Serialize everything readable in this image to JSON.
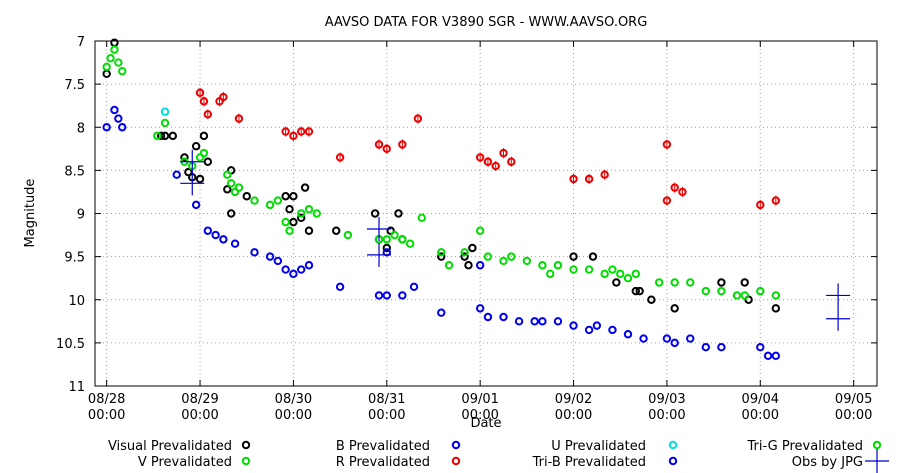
{
  "chart_data": {
    "type": "scatter",
    "title": "AAVSO DATA FOR V3890 SGR - WWW.AAVSO.ORG",
    "xlabel": "Date",
    "ylabel": "Magnitude",
    "y_inverted": true,
    "ylim": [
      7,
      11
    ],
    "y_ticks": [
      "7",
      "7.5",
      "8",
      "8.5",
      "9",
      "9.5",
      "10",
      "10.5",
      "11"
    ],
    "xlim": [
      "08/27 21:00",
      "09/05 06:00"
    ],
    "x_ticks": [
      {
        "date": "08/28",
        "time": "00:00"
      },
      {
        "date": "08/29",
        "time": "00:00"
      },
      {
        "date": "08/30",
        "time": "00:00"
      },
      {
        "date": "08/31",
        "time": "00:00"
      },
      {
        "date": "09/01",
        "time": "00:00"
      },
      {
        "date": "09/02",
        "time": "00:00"
      },
      {
        "date": "09/03",
        "time": "00:00"
      },
      {
        "date": "09/04",
        "time": "00:00"
      },
      {
        "date": "09/05",
        "time": "00:00"
      }
    ],
    "grid": true,
    "legend_position": "bottom",
    "series": [
      {
        "name": "Visual Prevalidated",
        "color": "#000000",
        "marker": "ring",
        "points": [
          [
            "08/28 00:00",
            7.38
          ],
          [
            "08/28 02:00",
            7.02
          ],
          [
            "08/28 14:00",
            8.1
          ],
          [
            "08/28 15:00",
            8.1
          ],
          [
            "08/28 17:00",
            8.1
          ],
          [
            "08/28 20:00",
            8.35
          ],
          [
            "08/28 21:00",
            8.52
          ],
          [
            "08/28 22:00",
            8.58
          ],
          [
            "08/28 23:00",
            8.22
          ],
          [
            "08/29 00:00",
            8.6
          ],
          [
            "08/29 01:00",
            8.1
          ],
          [
            "08/29 02:00",
            8.4
          ],
          [
            "08/29 07:00",
            8.72
          ],
          [
            "08/29 08:00",
            8.5
          ],
          [
            "08/29 08:00",
            9.0
          ],
          [
            "08/29 12:00",
            8.8
          ],
          [
            "08/29 22:00",
            8.8
          ],
          [
            "08/29 23:00",
            8.95
          ],
          [
            "08/30 00:00",
            9.1
          ],
          [
            "08/30 00:00",
            8.8
          ],
          [
            "08/30 02:00",
            9.05
          ],
          [
            "08/30 03:00",
            8.7
          ],
          [
            "08/30 04:00",
            9.2
          ],
          [
            "08/30 11:00",
            9.2
          ],
          [
            "08/30 21:00",
            9.0
          ],
          [
            "08/30 22:00",
            9.3
          ],
          [
            "08/31 00:00",
            9.4
          ],
          [
            "08/31 01:00",
            9.2
          ],
          [
            "08/31 03:00",
            9.0
          ],
          [
            "08/31 04:00",
            9.3
          ],
          [
            "08/31 14:00",
            9.5
          ],
          [
            "08/31 20:00",
            9.5
          ],
          [
            "08/31 21:00",
            9.6
          ],
          [
            "08/31 22:00",
            9.4
          ],
          [
            "09/02 00:00",
            9.5
          ],
          [
            "09/02 05:00",
            9.5
          ],
          [
            "09/02 11:00",
            9.8
          ],
          [
            "09/02 16:00",
            9.9
          ],
          [
            "09/02 17:00",
            9.9
          ],
          [
            "09/02 20:00",
            10.0
          ],
          [
            "09/03 02:00",
            10.1
          ],
          [
            "09/03 14:00",
            9.8
          ],
          [
            "09/03 20:00",
            9.8
          ],
          [
            "09/03 21:00",
            10.0
          ],
          [
            "09/04 04:00",
            10.1
          ]
        ]
      },
      {
        "name": "V Prevalidated",
        "color": "#00dd00",
        "marker": "ring",
        "points": [
          [
            "08/28 00:00",
            7.3
          ],
          [
            "08/28 01:00",
            7.2
          ],
          [
            "08/28 02:00",
            7.1
          ],
          [
            "08/28 03:00",
            7.25
          ],
          [
            "08/28 04:00",
            7.35
          ],
          [
            "08/28 13:00",
            8.1
          ],
          [
            "08/28 15:00",
            7.95
          ],
          [
            "08/28 20:00",
            8.4
          ],
          [
            "08/28 22:00",
            8.45
          ],
          [
            "08/29 00:00",
            8.35
          ],
          [
            "08/29 01:00",
            8.3
          ],
          [
            "08/29 07:00",
            8.55
          ],
          [
            "08/29 08:00",
            8.65
          ],
          [
            "08/29 09:00",
            8.75
          ],
          [
            "08/29 10:00",
            8.7
          ],
          [
            "08/29 14:00",
            8.85
          ],
          [
            "08/29 18:00",
            8.9
          ],
          [
            "08/29 20:00",
            8.85
          ],
          [
            "08/29 22:00",
            9.1
          ],
          [
            "08/29 23:00",
            9.2
          ],
          [
            "08/30 02:00",
            9.0
          ],
          [
            "08/30 04:00",
            8.95
          ],
          [
            "08/30 06:00",
            9.0
          ],
          [
            "08/30 14:00",
            9.25
          ],
          [
            "08/30 22:00",
            9.3
          ],
          [
            "08/31 02:00",
            9.25
          ],
          [
            "08/31 04:00",
            9.3
          ],
          [
            "08/31 06:00",
            9.35
          ],
          [
            "08/31 09:00",
            9.05
          ],
          [
            "08/31 14:00",
            9.45
          ],
          [
            "08/31 16:00",
            9.6
          ],
          [
            "08/31 20:00",
            9.45
          ],
          [
            "09/01 00:00",
            9.2
          ],
          [
            "09/01 02:00",
            9.5
          ],
          [
            "09/01 06:00",
            9.55
          ],
          [
            "09/01 08:00",
            9.5
          ],
          [
            "09/01 12:00",
            9.55
          ],
          [
            "09/01 16:00",
            9.6
          ],
          [
            "09/01 18:00",
            9.7
          ],
          [
            "09/01 20:00",
            9.6
          ],
          [
            "09/02 00:00",
            9.65
          ],
          [
            "09/02 04:00",
            9.65
          ],
          [
            "09/02 08:00",
            9.7
          ],
          [
            "09/02 10:00",
            9.65
          ],
          [
            "09/02 14:00",
            9.75
          ],
          [
            "09/02 16:00",
            9.7
          ],
          [
            "09/02 22:00",
            9.8
          ],
          [
            "09/03 02:00",
            9.8
          ],
          [
            "09/03 06:00",
            9.8
          ],
          [
            "09/03 10:00",
            9.9
          ],
          [
            "09/03 14:00",
            9.9
          ],
          [
            "09/03 18:00",
            9.95
          ],
          [
            "09/03 20:00",
            9.95
          ],
          [
            "09/04 00:00",
            9.9
          ],
          [
            "09/04 04:00",
            9.95
          ]
        ]
      },
      {
        "name": "B Prevalidated",
        "color": "#0000ee",
        "marker": "ring",
        "points": [
          [
            "08/28 00:00",
            8.0
          ],
          [
            "08/28 02:00",
            7.8
          ],
          [
            "08/28 03:00",
            7.9
          ],
          [
            "08/28 04:00",
            8.0
          ],
          [
            "08/28 18:00",
            8.55
          ],
          [
            "08/28 23:00",
            8.9
          ],
          [
            "08/29 02:00",
            9.2
          ],
          [
            "08/29 04:00",
            9.25
          ],
          [
            "08/29 06:00",
            9.3
          ],
          [
            "08/29 09:00",
            9.35
          ],
          [
            "08/29 14:00",
            9.45
          ],
          [
            "08/29 18:00",
            9.5
          ],
          [
            "08/29 20:00",
            9.55
          ],
          [
            "08/29 22:00",
            9.65
          ],
          [
            "08/30 00:00",
            9.7
          ],
          [
            "08/30 02:00",
            9.65
          ],
          [
            "08/30 04:00",
            9.6
          ],
          [
            "08/30 12:00",
            9.85
          ],
          [
            "08/30 22:00",
            9.95
          ],
          [
            "08/31 00:00",
            9.95
          ],
          [
            "08/31 04:00",
            9.95
          ],
          [
            "08/31 07:00",
            9.85
          ],
          [
            "08/31 14:00",
            10.15
          ],
          [
            "09/01 00:00",
            10.1
          ],
          [
            "09/01 02:00",
            10.2
          ],
          [
            "09/01 06:00",
            10.2
          ],
          [
            "09/01 10:00",
            10.25
          ],
          [
            "09/01 14:00",
            10.25
          ],
          [
            "09/01 16:00",
            10.25
          ],
          [
            "09/01 20:00",
            10.25
          ],
          [
            "09/02 00:00",
            10.3
          ],
          [
            "09/02 04:00",
            10.35
          ],
          [
            "09/02 06:00",
            10.3
          ],
          [
            "09/02 10:00",
            10.35
          ],
          [
            "09/02 14:00",
            10.4
          ],
          [
            "09/02 18:00",
            10.45
          ],
          [
            "09/03 00:00",
            10.45
          ],
          [
            "09/03 02:00",
            10.5
          ],
          [
            "09/03 06:00",
            10.45
          ],
          [
            "09/03 10:00",
            10.55
          ],
          [
            "09/03 14:00",
            10.55
          ],
          [
            "09/04 00:00",
            10.55
          ],
          [
            "09/04 02:00",
            10.65
          ],
          [
            "09/04 04:00",
            10.65
          ]
        ]
      },
      {
        "name": "R Prevalidated",
        "color": "#ee0000",
        "marker": "ring",
        "error_bars": true,
        "points": [
          [
            "08/29 00:00",
            7.6
          ],
          [
            "08/29 01:00",
            7.7
          ],
          [
            "08/29 02:00",
            7.85
          ],
          [
            "08/29 05:00",
            7.7
          ],
          [
            "08/29 06:00",
            7.65
          ],
          [
            "08/29 10:00",
            7.9
          ],
          [
            "08/29 22:00",
            8.05
          ],
          [
            "08/30 00:00",
            8.1
          ],
          [
            "08/30 02:00",
            8.05
          ],
          [
            "08/30 04:00",
            8.05
          ],
          [
            "08/30 12:00",
            8.35
          ],
          [
            "08/30 22:00",
            8.2
          ],
          [
            "08/31 00:00",
            8.25
          ],
          [
            "08/31 04:00",
            8.2
          ],
          [
            "08/31 08:00",
            7.9
          ],
          [
            "09/01 00:00",
            8.35
          ],
          [
            "09/01 02:00",
            8.4
          ],
          [
            "09/01 04:00",
            8.45
          ],
          [
            "09/01 06:00",
            8.3
          ],
          [
            "09/01 08:00",
            8.4
          ],
          [
            "09/02 00:00",
            8.6
          ],
          [
            "09/02 04:00",
            8.6
          ],
          [
            "09/02 08:00",
            8.55
          ],
          [
            "09/03 00:00",
            8.2
          ],
          [
            "09/03 00:00",
            8.85
          ],
          [
            "09/03 02:00",
            8.7
          ],
          [
            "09/03 04:00",
            8.75
          ],
          [
            "09/04 00:00",
            8.9
          ],
          [
            "09/04 04:00",
            8.85
          ]
        ]
      },
      {
        "name": "U Prevalidated",
        "color": "#00dddd",
        "marker": "ring",
        "points": [
          [
            "08/28 15:00",
            7.82
          ]
        ]
      },
      {
        "name": "Tri-B Prevalidated",
        "color": "#0000ee",
        "marker": "ring",
        "points": [
          [
            "08/31 00:00",
            9.45
          ],
          [
            "09/01 00:00",
            9.6
          ]
        ]
      },
      {
        "name": "Tri-G Prevalidated",
        "color": "#00dd00",
        "marker": "ring",
        "points": [
          [
            "08/31 00:00",
            9.3
          ],
          [
            "09/02 12:00",
            9.7
          ]
        ]
      },
      {
        "name": "Obs by JPG",
        "color": "#0000cc",
        "marker": "plus",
        "points": [
          [
            "08/28 22:00",
            8.4
          ],
          [
            "08/28 22:00",
            8.65
          ],
          [
            "08/30 22:00",
            9.18
          ],
          [
            "08/30 22:00",
            9.48
          ],
          [
            "09/04 20:00",
            9.95
          ],
          [
            "09/04 20:00",
            10.22
          ]
        ]
      }
    ]
  }
}
